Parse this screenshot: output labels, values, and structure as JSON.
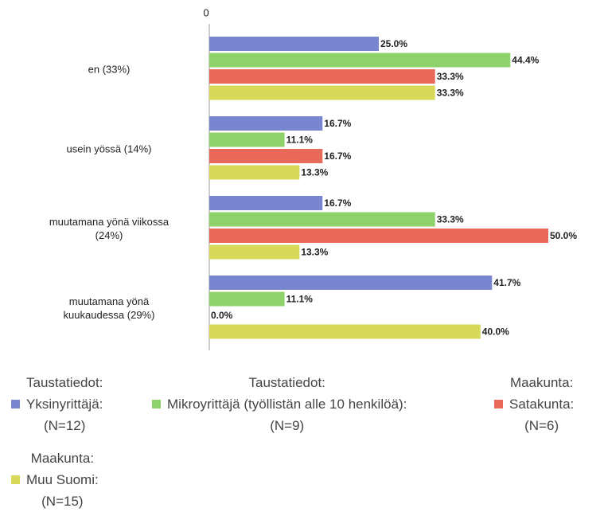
{
  "chart_data": {
    "type": "bar",
    "orientation": "horizontal",
    "categories": [
      "en (33%)",
      "usein yössä (14%)",
      "muutamana yönä viikossa\n(24%)",
      "muutamana yönä\nkuukaudessa (29%)"
    ],
    "xlim": [
      0,
      50
    ],
    "xticks": [
      0
    ],
    "series": [
      {
        "name": "Taustatiedot:\nYksinyrittäjä:\n(N=12)",
        "color": "#7a85d0",
        "values": [
          25.0,
          16.7,
          16.7,
          41.7
        ],
        "value_labels": [
          "25.0%",
          "16.7%",
          "16.7%",
          "41.7%"
        ]
      },
      {
        "name": "Taustatiedot:\nMikroyrittäjä (työllistän alle 10 henkilöä):\n(N=9)",
        "color": "#8fd16a",
        "values": [
          44.4,
          11.1,
          33.3,
          11.1
        ],
        "value_labels": [
          "44.4%",
          "11.1%",
          "33.3%",
          "11.1%"
        ]
      },
      {
        "name": "Maakunta:\nSatakunta:\n(N=6)",
        "color": "#e8695a",
        "values": [
          33.3,
          16.7,
          50.0,
          0.0
        ],
        "value_labels": [
          "33.3%",
          "16.7%",
          "50.0%",
          "0.0%"
        ]
      },
      {
        "name": "Maakunta:\nMuu Suomi:\n(N=15)",
        "color": "#d8d85a",
        "values": [
          33.3,
          13.3,
          13.3,
          40.0
        ],
        "value_labels": [
          "33.3%",
          "13.3%",
          "13.3%",
          "40.0%"
        ]
      }
    ]
  }
}
